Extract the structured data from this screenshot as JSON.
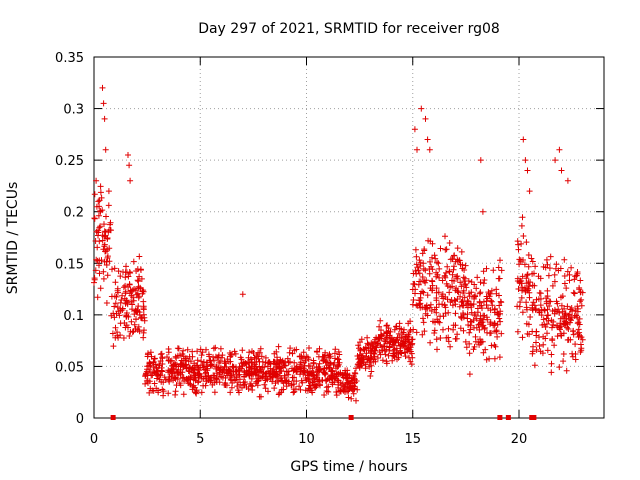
{
  "chart_data": {
    "type": "scatter",
    "title": "Day 297 of 2021, SRMTID for receiver rg08",
    "xlabel": "GPS time / hours",
    "ylabel": "SRMTID / TECUs",
    "xlim": [
      0,
      24
    ],
    "ylim": [
      0,
      0.35
    ],
    "x_ticks": [
      0,
      5,
      10,
      15,
      20
    ],
    "x_tick_labels": [
      "0",
      "5",
      "10",
      "15",
      "20"
    ],
    "y_ticks": [
      0,
      0.05,
      0.1,
      0.15,
      0.2,
      0.25,
      0.3,
      0.35
    ],
    "y_tick_labels": [
      "0",
      "0.05",
      "0.1",
      "0.15",
      "0.2",
      "0.25",
      "0.3",
      "0.35"
    ],
    "grid": true,
    "marker": "+",
    "color": "#e00000",
    "series": [
      {
        "name": "SRMTID",
        "segments": [
          {
            "x0": 0.0,
            "x1": 0.8,
            "lo": 0.1,
            "hi": 0.23
          },
          {
            "x0": 0.8,
            "x1": 2.4,
            "lo": 0.06,
            "hi": 0.16
          },
          {
            "x0": 2.4,
            "x1": 5.0,
            "lo": 0.02,
            "hi": 0.07
          },
          {
            "x0": 5.0,
            "x1": 9.0,
            "lo": 0.02,
            "hi": 0.07
          },
          {
            "x0": 9.0,
            "x1": 11.6,
            "lo": 0.02,
            "hi": 0.07
          },
          {
            "x0": 11.6,
            "x1": 12.4,
            "lo": 0.015,
            "hi": 0.05
          },
          {
            "x0": 12.4,
            "x1": 13.2,
            "lo": 0.04,
            "hi": 0.08
          },
          {
            "x0": 13.2,
            "x1": 15.0,
            "lo": 0.05,
            "hi": 0.095
          },
          {
            "x0": 15.0,
            "x1": 17.5,
            "lo": 0.06,
            "hi": 0.18
          },
          {
            "x0": 17.5,
            "x1": 19.2,
            "lo": 0.04,
            "hi": 0.16
          },
          {
            "x0": 19.9,
            "x1": 20.6,
            "lo": 0.06,
            "hi": 0.2
          },
          {
            "x0": 20.6,
            "x1": 23.0,
            "lo": 0.04,
            "hi": 0.16
          }
        ],
        "peaks": [
          [
            0.1,
            0.23
          ],
          [
            0.2,
            0.21
          ],
          [
            0.3,
            0.2
          ],
          [
            0.4,
            0.32
          ],
          [
            0.45,
            0.305
          ],
          [
            0.5,
            0.29
          ],
          [
            0.55,
            0.26
          ],
          [
            1.6,
            0.255
          ],
          [
            1.65,
            0.245
          ],
          [
            1.7,
            0.23
          ],
          [
            7.0,
            0.12
          ],
          [
            15.1,
            0.28
          ],
          [
            15.2,
            0.26
          ],
          [
            15.4,
            0.3
          ],
          [
            15.6,
            0.29
          ],
          [
            15.7,
            0.27
          ],
          [
            15.8,
            0.26
          ],
          [
            18.2,
            0.25
          ],
          [
            18.3,
            0.2
          ],
          [
            20.2,
            0.27
          ],
          [
            20.3,
            0.25
          ],
          [
            20.4,
            0.24
          ],
          [
            20.5,
            0.22
          ],
          [
            21.7,
            0.25
          ],
          [
            21.9,
            0.26
          ],
          [
            22.0,
            0.24
          ],
          [
            22.3,
            0.23
          ]
        ],
        "zero_values": [
          0.9,
          12.1,
          19.1,
          19.5,
          20.6,
          20.7
        ]
      }
    ]
  }
}
